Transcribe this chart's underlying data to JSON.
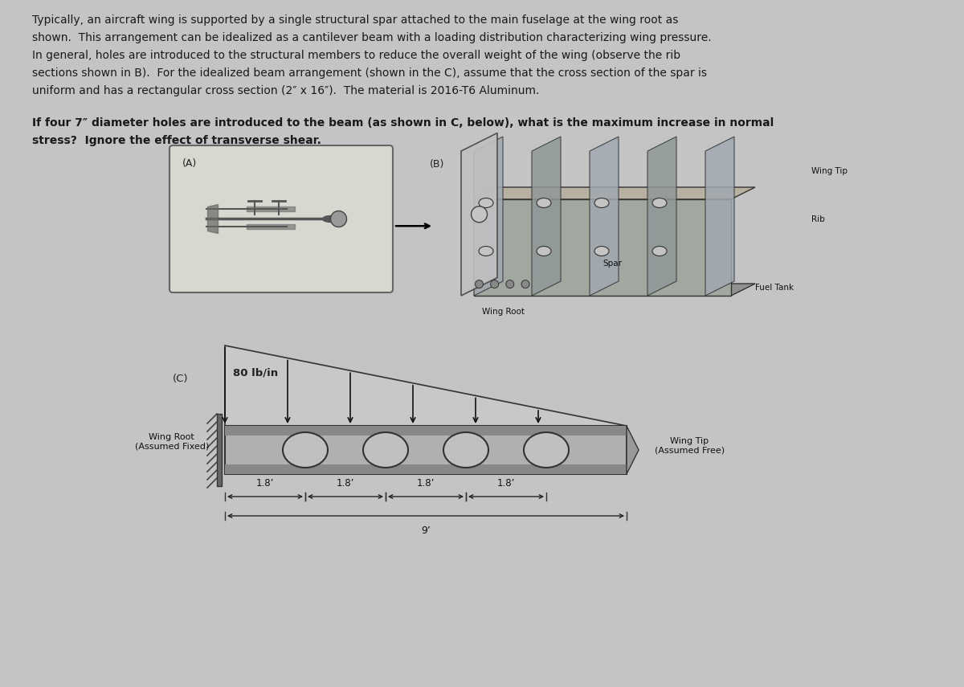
{
  "background_color": "#c4c4c4",
  "text_color": "#1a1a1a",
  "body_text_lines": [
    "Typically, an aircraft wing is supported by a single structural spar attached to the main fuselage at the wing root as",
    "shown.  This arrangement can be idealized as a cantilever beam with a loading distribution characterizing wing pressure.",
    "In general, holes are introduced to the structural members to reduce the overall weight of the wing (observe the rib",
    "sections shown in B).  For the idealized beam arrangement (shown in the C), assume that the cross section of the spar is",
    "uniform and has a rectangular cross section (2″ x 16″).  The material is 2016-T6 Aluminum."
  ],
  "question_line1": "If four 7″ diameter holes are introduced to the beam (as shown in C, below), what is the maximum increase in normal",
  "question_line2": "stress?  Ignore the effect of transverse shear.",
  "label_A": "(A)",
  "label_B": "(B)",
  "label_C": "(C)",
  "load_label": "80 lb/in",
  "wing_root_label_C": "Wing Root\n(Assumed Fixed)",
  "wing_tip_label_C": "Wing Tip\n(Assumed Free)",
  "dim_labels": [
    "1.8’",
    "1.8’",
    "1.8’",
    "1.8’"
  ],
  "total_dim_label": "9’",
  "wing_tip_label_B": "Wing Tip",
  "rib_label_B": "Rib",
  "spar_label_B": "Spar",
  "fuel_tank_label_B": "Fuel Tank",
  "wing_root_label_B": "Wing Root"
}
